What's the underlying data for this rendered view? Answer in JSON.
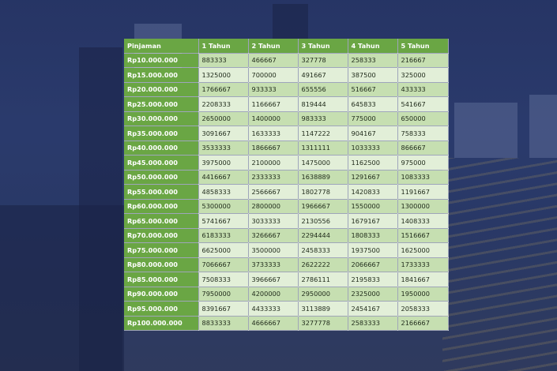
{
  "colors": {
    "header_green": "#6aa644",
    "row_light": "#e2efd8",
    "row_mid": "#c6dfb1",
    "background_tint": "#2c3d6e"
  },
  "table": {
    "headers": [
      "Pinjaman",
      "1 Tahun",
      "2 Tahun",
      "3 Tahun",
      "4 Tahun",
      "5 Tahun"
    ],
    "rows": [
      [
        "Rp10.000.000",
        "883333",
        "466667",
        "327778",
        "258333",
        "216667"
      ],
      [
        "Rp15.000.000",
        "1325000",
        "700000",
        "491667",
        "387500",
        "325000"
      ],
      [
        "Rp20.000.000",
        "1766667",
        "933333",
        "655556",
        "516667",
        "433333"
      ],
      [
        "Rp25.000.000",
        "2208333",
        "1166667",
        "819444",
        "645833",
        "541667"
      ],
      [
        "Rp30.000.000",
        "2650000",
        "1400000",
        "983333",
        "775000",
        "650000"
      ],
      [
        "Rp35.000.000",
        "3091667",
        "1633333",
        "1147222",
        "904167",
        "758333"
      ],
      [
        "Rp40.000.000",
        "3533333",
        "1866667",
        "1311111",
        "1033333",
        "866667"
      ],
      [
        "Rp45.000.000",
        "3975000",
        "2100000",
        "1475000",
        "1162500",
        "975000"
      ],
      [
        "Rp50.000.000",
        "4416667",
        "2333333",
        "1638889",
        "1291667",
        "1083333"
      ],
      [
        "Rp55.000.000",
        "4858333",
        "2566667",
        "1802778",
        "1420833",
        "1191667"
      ],
      [
        "Rp60.000.000",
        "5300000",
        "2800000",
        "1966667",
        "1550000",
        "1300000"
      ],
      [
        "Rp65.000.000",
        "5741667",
        "3033333",
        "2130556",
        "1679167",
        "1408333"
      ],
      [
        "Rp70.000.000",
        "6183333",
        "3266667",
        "2294444",
        "1808333",
        "1516667"
      ],
      [
        "Rp75.000.000",
        "6625000",
        "3500000",
        "2458333",
        "1937500",
        "1625000"
      ],
      [
        "Rp80.000.000",
        "7066667",
        "3733333",
        "2622222",
        "2066667",
        "1733333"
      ],
      [
        "Rp85.000.000",
        "7508333",
        "3966667",
        "2786111",
        "2195833",
        "1841667"
      ],
      [
        "Rp90.000.000",
        "7950000",
        "4200000",
        "2950000",
        "2325000",
        "1950000"
      ],
      [
        "Rp95.000.000",
        "8391667",
        "4433333",
        "3113889",
        "2454167",
        "2058333"
      ],
      [
        "Rp100.000.000",
        "8833333",
        "4666667",
        "3277778",
        "2583333",
        "2166667"
      ]
    ]
  }
}
